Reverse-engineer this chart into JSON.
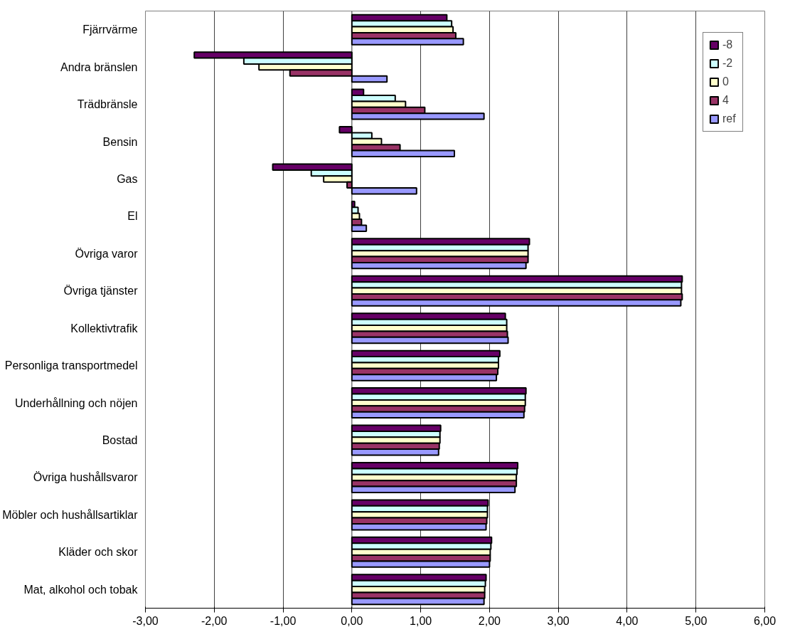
{
  "chart_data": {
    "type": "bar",
    "orientation": "horizontal",
    "categories": [
      "Fjärrvärme",
      "Andra bränslen",
      "Trädbränsle",
      "Bensin",
      "Gas",
      "El",
      "Övriga varor",
      "Övriga tjänster",
      "Kollektivtrafik",
      "Personliga transportmedel",
      "Underhållning och nöjen",
      "Bostad",
      "Övriga hushållsvaror",
      "Möbler och hushållsartiklar",
      "Kläder och skor",
      "Mat, alkohol och tobak"
    ],
    "series": [
      {
        "name": "-8",
        "color": "#660066",
        "values": [
          1.38,
          -2.29,
          0.17,
          -0.18,
          -1.15,
          0.04,
          2.58,
          4.8,
          2.23,
          2.15,
          2.53,
          1.29,
          2.41,
          1.98,
          2.03,
          1.95
        ]
      },
      {
        "name": "-2",
        "color": "#ccffff",
        "values": [
          1.45,
          -1.57,
          0.63,
          0.29,
          -0.59,
          0.09,
          2.56,
          4.79,
          2.25,
          2.13,
          2.52,
          1.28,
          2.4,
          1.97,
          2.02,
          1.94
        ]
      },
      {
        "name": "0",
        "color": "#ffffcc",
        "values": [
          1.47,
          -1.35,
          0.78,
          0.43,
          -0.41,
          0.11,
          2.56,
          4.79,
          2.25,
          2.13,
          2.52,
          1.28,
          2.39,
          1.97,
          2.01,
          1.93
        ]
      },
      {
        "name": "4",
        "color": "#993366",
        "values": [
          1.51,
          -0.9,
          1.06,
          0.7,
          -0.07,
          0.14,
          2.56,
          4.8,
          2.26,
          2.12,
          2.51,
          1.27,
          2.39,
          1.96,
          2.01,
          1.93
        ]
      },
      {
        "name": "ref",
        "color": "#9999ff",
        "values": [
          1.62,
          0.51,
          1.92,
          1.49,
          0.94,
          0.21,
          2.53,
          4.78,
          2.27,
          2.1,
          2.5,
          1.26,
          2.37,
          1.95,
          2.0,
          1.92
        ]
      }
    ],
    "xlim": [
      -3,
      6
    ],
    "xticks": [
      {
        "value": -3,
        "label": "-3,00"
      },
      {
        "value": -2,
        "label": "-2,00"
      },
      {
        "value": -1,
        "label": "-1,00"
      },
      {
        "value": 0,
        "label": "0,00"
      },
      {
        "value": 1,
        "label": "1,00"
      },
      {
        "value": 2,
        "label": "2,00"
      },
      {
        "value": 3,
        "label": "3,00"
      },
      {
        "value": 4,
        "label": "4,00"
      },
      {
        "value": 5,
        "label": "5,00"
      },
      {
        "value": 6,
        "label": "6,00"
      }
    ],
    "grid": "x",
    "legend": "top right"
  }
}
